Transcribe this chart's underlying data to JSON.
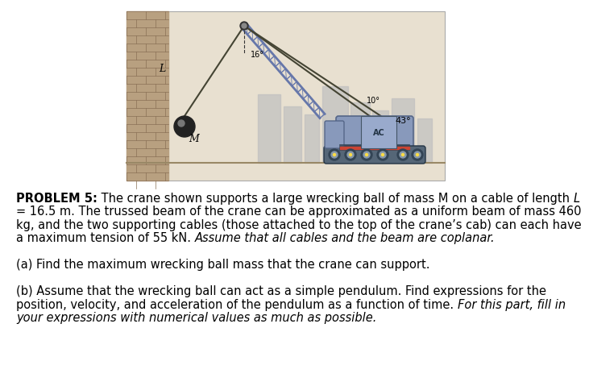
{
  "background_color": "#ffffff",
  "text_color": "#000000",
  "font_size_body": 10.5,
  "image_bg": "#e8e0d0",
  "image_border_color": "#aaaaaa",
  "brick_color": "#b8a080",
  "brick_line_color": "#8a7055",
  "building_color": "#c0c0c0",
  "building_shadow_color": "#d8d0c0",
  "crane_color": "#8899aa",
  "boom_color": "#aabb88",
  "cable_color": "#444433",
  "track_color": "#556677",
  "wheel_color": "#334455",
  "ball_color": "#222222",
  "ground_color": "#998866",
  "lines": [
    {
      "bold": "PROBLEM 5:",
      "normal": " The crane shown supports a large wrecking ball of mass M on a cable of length ",
      "italic": "L"
    },
    {
      "normal": "= 16.5 m. The trussed beam of the crane can be approximated as a uniform beam of mass 460"
    },
    {
      "normal": "kg, and the two supporting cables (those attached to the top of the crane’s cab) can each have"
    },
    {
      "normal": "a maximum tension of 55 kN. ",
      "italic": "Assume that all cables and the beam are coplanar."
    },
    {
      "normal": ""
    },
    {
      "normal": "(a) Find the maximum wrecking ball mass that the crane can support."
    },
    {
      "normal": ""
    },
    {
      "normal": "(b) Assume that the wrecking ball can act as a simple pendulum. Find expressions for the"
    },
    {
      "normal": "position, velocity, and acceleration of the pendulum as a function of time. ",
      "italic": "For this part, fill in"
    },
    {
      "italic": "your expressions with numerical values as much as possible."
    }
  ]
}
